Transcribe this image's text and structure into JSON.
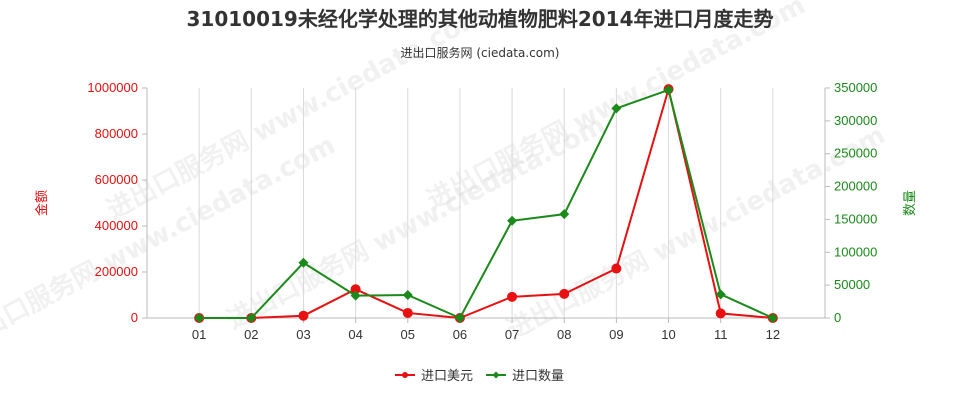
{
  "chart_data": {
    "type": "line",
    "title": "31010019未经化学处理的其他动植物肥料2014年进口月度走势",
    "subtitle": "进出口服务网 (ciedata.com)",
    "categories": [
      "01",
      "02",
      "03",
      "04",
      "05",
      "06",
      "07",
      "08",
      "09",
      "10",
      "11",
      "12"
    ],
    "series": [
      {
        "name": "进口美元",
        "axis": "left",
        "color": "#e81010",
        "values": [
          0,
          0,
          10000,
          125000,
          22000,
          0,
          92000,
          105000,
          215000,
          995000,
          20000,
          0
        ]
      },
      {
        "name": "进口数量",
        "axis": "right",
        "color": "#1a8a1a",
        "values": [
          0,
          0,
          84000,
          34000,
          35000,
          0,
          148000,
          158000,
          319000,
          347000,
          36000,
          0
        ]
      }
    ],
    "y_left": {
      "label": "金额",
      "range": [
        0,
        1000000
      ],
      "ticks": [
        "0",
        "200000",
        "400000",
        "600000",
        "800000",
        "1000000"
      ],
      "color": "#e81010"
    },
    "y_right": {
      "label": "数量",
      "range": [
        0,
        350000
      ],
      "ticks": [
        "0",
        "50000",
        "100000",
        "150000",
        "200000",
        "250000",
        "300000",
        "350000"
      ],
      "color": "#1a8a1a"
    },
    "grid": "vertical",
    "legend_position": "bottom-center",
    "watermark": "进出口服务网 www.ciedata.com"
  }
}
